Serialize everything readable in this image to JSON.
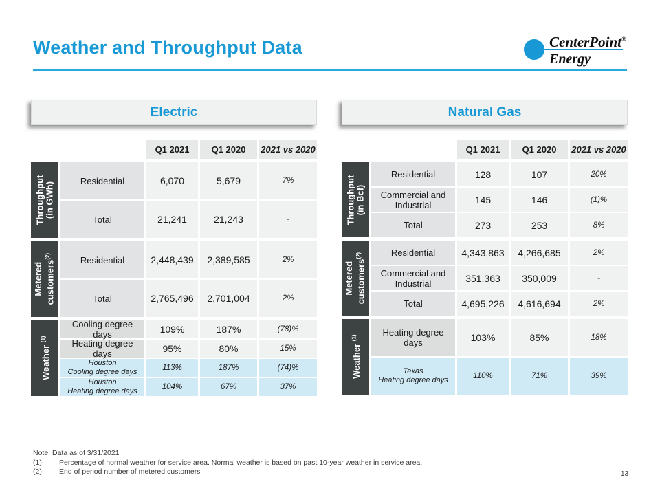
{
  "page": {
    "title": "Weather and Throughput Data",
    "page_number": "13"
  },
  "colors": {
    "accent_blue": "#1899d6",
    "dark_label_bg": "#3d4242",
    "highlight_blue_bg": "#cfe9f5"
  },
  "logo": {
    "line1": "CenterPoint",
    "reg": "®",
    "line2": "Energy"
  },
  "columns": {
    "c1": "Q1 2021",
    "c2": "Q1 2020",
    "c3": "2021 vs 2020"
  },
  "electric": {
    "title": "Electric",
    "throughput": {
      "label_line1": "Throughput",
      "label_line2": "(in GWh)",
      "rows": [
        {
          "label": "Residential",
          "q1_2021": "6,070",
          "q1_2020": "5,679",
          "change": "7%"
        },
        {
          "label": "Total",
          "q1_2021": "21,241",
          "q1_2020": "21,243",
          "change": "-"
        }
      ]
    },
    "metered": {
      "label_line1": "Metered",
      "label_line2": "customers",
      "label_sup": "(2)",
      "rows": [
        {
          "label": "Residential",
          "q1_2021": "2,448,439",
          "q1_2020": "2,389,585",
          "change": "2%"
        },
        {
          "label": "Total",
          "q1_2021": "2,765,496",
          "q1_2020": "2,701,004",
          "change": "2%"
        }
      ]
    },
    "weather": {
      "label": "Weather",
      "label_sup": "(1)",
      "rows": [
        {
          "label": "Cooling degree days",
          "q1_2021": "109%",
          "q1_2020": "187%",
          "change": "(78)%"
        },
        {
          "label": "Heating degree days",
          "q1_2021": "95%",
          "q1_2020": "80%",
          "change": "15%"
        },
        {
          "label_line1": "Houston",
          "label_line2": "Cooling degree days",
          "q1_2021": "113%",
          "q1_2020": "187%",
          "change": "(74)%"
        },
        {
          "label_line1": "Houston",
          "label_line2": "Heating degree days",
          "q1_2021": "104%",
          "q1_2020": "67%",
          "change": "37%"
        }
      ]
    }
  },
  "natural_gas": {
    "title": "Natural Gas",
    "throughput": {
      "label_line1": "Throughput",
      "label_line2": "(in Bcf)",
      "rows": [
        {
          "label": "Residential",
          "q1_2021": "128",
          "q1_2020": "107",
          "change": "20%"
        },
        {
          "label": "Commercial and Industrial",
          "q1_2021": "145",
          "q1_2020": "146",
          "change": "(1)%"
        },
        {
          "label": "Total",
          "q1_2021": "273",
          "q1_2020": "253",
          "change": "8%"
        }
      ]
    },
    "metered": {
      "label_line1": "Metered",
      "label_line2": "customers",
      "label_sup": "(2)",
      "rows": [
        {
          "label": "Residential",
          "q1_2021": "4,343,863",
          "q1_2020": "4,266,685",
          "change": "2%"
        },
        {
          "label": "Commercial and Industrial",
          "q1_2021": "351,363",
          "q1_2020": "350,009",
          "change": "-"
        },
        {
          "label": "Total",
          "q1_2021": "4,695,226",
          "q1_2020": "4,616,694",
          "change": "2%"
        }
      ]
    },
    "weather": {
      "label": "Weather",
      "label_sup": "(1)",
      "rows": [
        {
          "label": "Heating degree days",
          "q1_2021": "103%",
          "q1_2020": "85%",
          "change": "18%"
        },
        {
          "label_line1": "Texas",
          "label_line2": "Heating degree days",
          "q1_2021": "110%",
          "q1_2020": "71%",
          "change": "39%"
        }
      ]
    }
  },
  "footnotes": {
    "note": "Note: Data as of 3/31/2021",
    "fn1_num": "(1)",
    "fn1_text": "Percentage of normal weather for service area. Normal weather is based on past 10-year weather in service area.",
    "fn2_num": "(2)",
    "fn2_text": "End of period number of metered customers"
  }
}
